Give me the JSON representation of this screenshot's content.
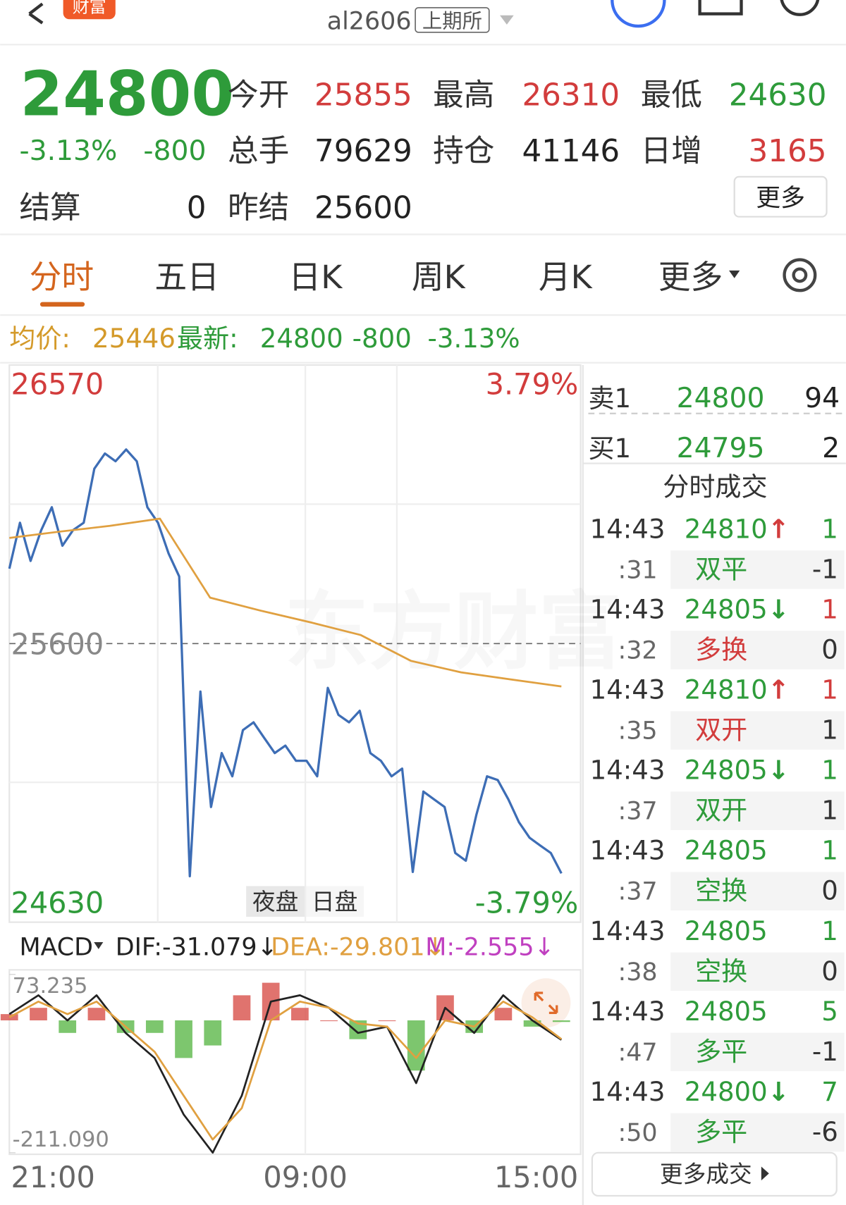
{
  "header": {
    "logo": "财富",
    "symbol": "al2606",
    "exchange": "上期所"
  },
  "quote": {
    "price": 24800,
    "change_pct": "-3.13%",
    "change": "-800",
    "stats": [
      {
        "label": "今开",
        "value": 25855,
        "color": "#d23c3c"
      },
      {
        "label": "最高",
        "value": 26310,
        "color": "#d23c3c"
      },
      {
        "label": "最低",
        "value": 24630,
        "color": "#2e9b3a"
      },
      {
        "label": "总手",
        "value": 79629,
        "color": "#222222"
      },
      {
        "label": "持仓",
        "value": 41146,
        "color": "#222222"
      },
      {
        "label": "日增",
        "value": 3165,
        "color": "#d23c3c"
      },
      {
        "label": "结算",
        "value": 0,
        "color": "#222222"
      },
      {
        "label": "昨结",
        "value": 25600,
        "color": "#222222"
      }
    ],
    "more": "更多"
  },
  "tabs": [
    "分时",
    "五日",
    "日K",
    "周K",
    "月K",
    "更多"
  ],
  "info": {
    "avg_label": "均价:",
    "avg": 25446,
    "last_label": "最新:",
    "last": 24800,
    "change": "-800",
    "change_pct": "-3.13%"
  },
  "chart_data": [
    {
      "type": "line",
      "ylim": [
        24630,
        26570
      ],
      "yticks": [
        26570,
        25600,
        24630
      ],
      "pct_labels": [
        "3.79%",
        "-3.79%"
      ],
      "session_labels": [
        "夜盘",
        "日盘"
      ],
      "x_labels": [
        "21:00",
        "09:00",
        "15:00"
      ],
      "series": [
        {
          "name": "price",
          "color": "#3d6db5",
          "values": [
            25861,
            26021,
            25888,
            25995,
            26075,
            25941,
            25995,
            26021,
            26209,
            26262,
            26235,
            26276,
            26235,
            26075,
            26021,
            25914,
            25834,
            24790,
            25433,
            25031,
            25219,
            25138,
            25299,
            25326,
            25272,
            25219,
            25245,
            25192,
            25192,
            25138,
            25446,
            25352,
            25326,
            25366,
            25219,
            25192,
            25138,
            25165,
            24805,
            25085,
            25058,
            25031,
            24871,
            24844,
            25005,
            25138,
            25125,
            25058,
            24978,
            24924,
            24897,
            24871,
            24800
          ]
        },
        {
          "name": "avg",
          "color": "#e0a040",
          "values": [
            25968,
            25990,
            26010,
            26035,
            25760,
            25715,
            25674,
            25630,
            25540,
            25500,
            25475,
            25451
          ]
        }
      ]
    },
    {
      "type": "macd",
      "title": "MACD",
      "dif": "DIF:-31.079↓",
      "dea": "DEA:-29.801↓",
      "m": "M:-2.555↓",
      "ylim": [
        -211.09,
        73.235
      ],
      "yticks": [
        {
          "value": 73.235,
          "label": "73.235"
        },
        {
          "value": -211.09,
          "label": "-211.090"
        }
      ],
      "series": [
        {
          "name": "DIF",
          "color": "#222222",
          "values": [
            10,
            40,
            0,
            40,
            -20,
            -60,
            -150,
            -211,
            -120,
            30,
            40,
            20,
            -20,
            -10,
            -100,
            20,
            -20,
            40,
            0,
            -31.079
          ]
        },
        {
          "name": "DEA",
          "color": "#e0a040",
          "values": [
            5,
            30,
            10,
            30,
            -10,
            -50,
            -120,
            -190,
            -140,
            0,
            30,
            20,
            -5,
            -10,
            -60,
            0,
            -10,
            30,
            5,
            -29.801
          ]
        },
        {
          "name": "M",
          "color": "#d8504a",
          "neg_color": "#5cb84a",
          "values": [
            10,
            20,
            -20,
            20,
            -20,
            -20,
            -60,
            -40,
            40,
            60,
            20,
            0,
            -30,
            0,
            -80,
            40,
            -20,
            20,
            -10,
            -2.555
          ]
        }
      ]
    }
  ],
  "orderbook": {
    "sell": {
      "label": "卖1",
      "price": 24800,
      "volume": 94
    },
    "buy": {
      "label": "买1",
      "price": 24795,
      "volume": 2
    }
  },
  "trades": {
    "title": "分时成交",
    "more": "更多成交",
    "rows": [
      {
        "time": "14:43",
        "price": 24810,
        "arrow": "↑",
        "volume": 1,
        "vol_color": "#2e9b3a",
        "sec": ":31",
        "type": "双平",
        "type_color": "#2e9b3a",
        "change": -1
      },
      {
        "time": "14:43",
        "price": 24805,
        "arrow": "↓",
        "volume": 1,
        "vol_color": "#d23c3c",
        "sec": ":32",
        "type": "多换",
        "type_color": "#d23c3c",
        "change": 0
      },
      {
        "time": "14:43",
        "price": 24810,
        "arrow": "↑",
        "volume": 1,
        "vol_color": "#d23c3c",
        "sec": ":35",
        "type": "双开",
        "type_color": "#d23c3c",
        "change": 1
      },
      {
        "time": "14:43",
        "price": 24805,
        "arrow": "↓",
        "volume": 1,
        "vol_color": "#2e9b3a",
        "sec": ":37",
        "type": "双开",
        "type_color": "#2e9b3a",
        "change": 1
      },
      {
        "time": "14:43",
        "price": 24805,
        "volume": 1,
        "vol_color": "#2e9b3a",
        "sec": ":37",
        "type": "空换",
        "type_color": "#2e9b3a",
        "change": 0
      },
      {
        "time": "14:43",
        "price": 24805,
        "volume": 1,
        "vol_color": "#2e9b3a",
        "sec": ":38",
        "type": "空换",
        "type_color": "#2e9b3a",
        "change": 0
      },
      {
        "time": "14:43",
        "price": 24805,
        "volume": 5,
        "vol_color": "#2e9b3a",
        "sec": ":47",
        "type": "多平",
        "type_color": "#2e9b3a",
        "change": -1
      },
      {
        "time": "14:43",
        "price": 24800,
        "arrow": "↓",
        "volume": 7,
        "vol_color": "#2e9b3a",
        "sec": ":50",
        "type": "多平",
        "type_color": "#2e9b3a",
        "change": -6
      }
    ]
  }
}
